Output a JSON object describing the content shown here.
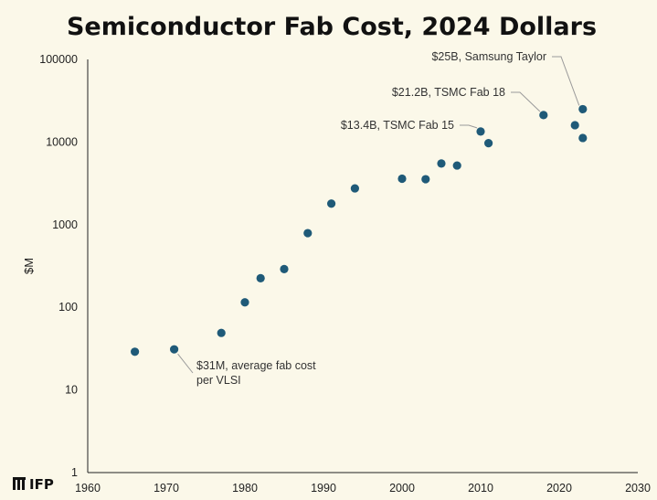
{
  "chart_data": {
    "type": "scatter",
    "title": "Semiconductor Fab Cost, 2024 Dollars",
    "xlabel": "",
    "ylabel": "$M",
    "xlim": [
      1960,
      2030
    ],
    "ylim": [
      1,
      100000
    ],
    "yscale": "log",
    "xticks": [
      1960,
      1970,
      1980,
      1990,
      2000,
      2010,
      2020,
      2030
    ],
    "yticks": [
      1,
      10,
      100,
      1000,
      10000,
      100000
    ],
    "grid": false,
    "legend": "none",
    "marker_color": "#1f5a78",
    "points": [
      {
        "x": 1966,
        "y": 29
      },
      {
        "x": 1971,
        "y": 31
      },
      {
        "x": 1977,
        "y": 49
      },
      {
        "x": 1980,
        "y": 115
      },
      {
        "x": 1982,
        "y": 225
      },
      {
        "x": 1985,
        "y": 290
      },
      {
        "x": 1988,
        "y": 790
      },
      {
        "x": 1991,
        "y": 1800
      },
      {
        "x": 1994,
        "y": 2750
      },
      {
        "x": 2000,
        "y": 3600
      },
      {
        "x": 2003,
        "y": 3550
      },
      {
        "x": 2005,
        "y": 5500
      },
      {
        "x": 2007,
        "y": 5200
      },
      {
        "x": 2010,
        "y": 13400
      },
      {
        "x": 2011,
        "y": 9700
      },
      {
        "x": 2018,
        "y": 21200
      },
      {
        "x": 2022,
        "y": 16000
      },
      {
        "x": 2023,
        "y": 25000
      },
      {
        "x": 2023,
        "y": 11200
      }
    ],
    "annotations": [
      {
        "lines": [
          "$31M, average fab cost",
          "per VLSI"
        ],
        "point_index": 1
      },
      {
        "lines": [
          "$13.4B, TSMC Fab 15"
        ],
        "point_index": 13
      },
      {
        "lines": [
          "$21.2B, TSMC Fab 18"
        ],
        "point_index": 15
      },
      {
        "lines": [
          "$25B, Samsung Taylor"
        ],
        "point_index": 17
      }
    ]
  },
  "branding": {
    "logo_text": "IFP",
    "logo_icon": "ifp-logo-icon"
  }
}
